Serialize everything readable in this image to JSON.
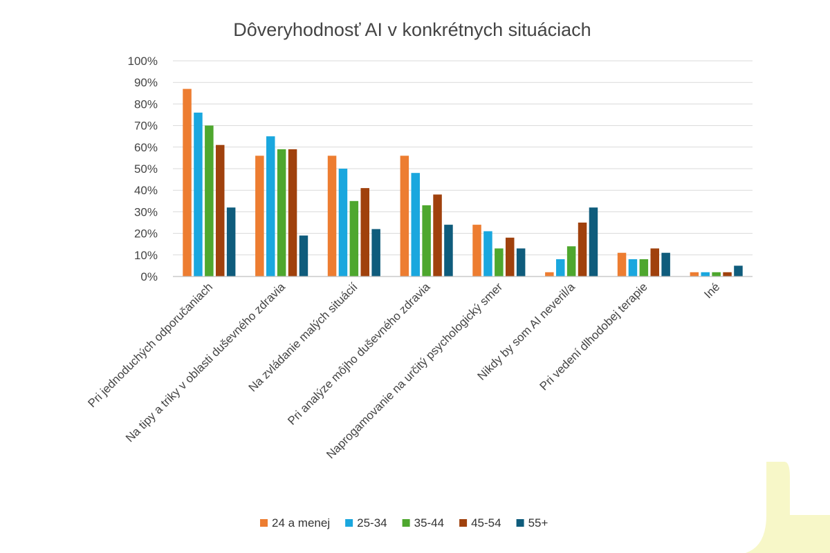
{
  "chart_data": {
    "type": "bar",
    "title": "Dôveryhodnosť AI v konkrétnych situáciach",
    "xlabel": "",
    "ylabel": "",
    "ylim": [
      0,
      100
    ],
    "y_ticks": [
      "0%",
      "10%",
      "20%",
      "30%",
      "40%",
      "50%",
      "60%",
      "70%",
      "80%",
      "90%",
      "100%"
    ],
    "grid": true,
    "legend_position": "bottom",
    "categories": [
      "Pri jednoduchých odporučaniach",
      "Na tipy a triky v oblasti duševného zdravia",
      "Na zvládanie malých situácií",
      "Pri analýze môjho duševného zdravia",
      "Naprogamovanie na určitý psychologický smer",
      "Nikdy by som AI neveril/a",
      "Pri vedení dlhodobej terapie",
      "Iné"
    ],
    "series": [
      {
        "name": "24 a menej",
        "color": "#ED7D31",
        "values": [
          87,
          56,
          56,
          56,
          24,
          2,
          11,
          2
        ]
      },
      {
        "name": "25-34",
        "color": "#1AA7DE",
        "values": [
          76,
          65,
          50,
          48,
          21,
          8,
          8,
          2
        ]
      },
      {
        "name": "35-44",
        "color": "#4EA72E",
        "values": [
          70,
          59,
          35,
          33,
          13,
          14,
          8,
          2
        ]
      },
      {
        "name": "45-54",
        "color": "#A0410D",
        "values": [
          61,
          59,
          41,
          38,
          18,
          25,
          13,
          2
        ]
      },
      {
        "name": "55+",
        "color": "#0F5C7C",
        "values": [
          32,
          19,
          22,
          24,
          13,
          32,
          11,
          5
        ]
      }
    ]
  },
  "colors": {
    "gridline": "#D9D9D9",
    "axis": "#BFBFBF",
    "text": "#444444",
    "decoration": "#F7F7C8"
  }
}
